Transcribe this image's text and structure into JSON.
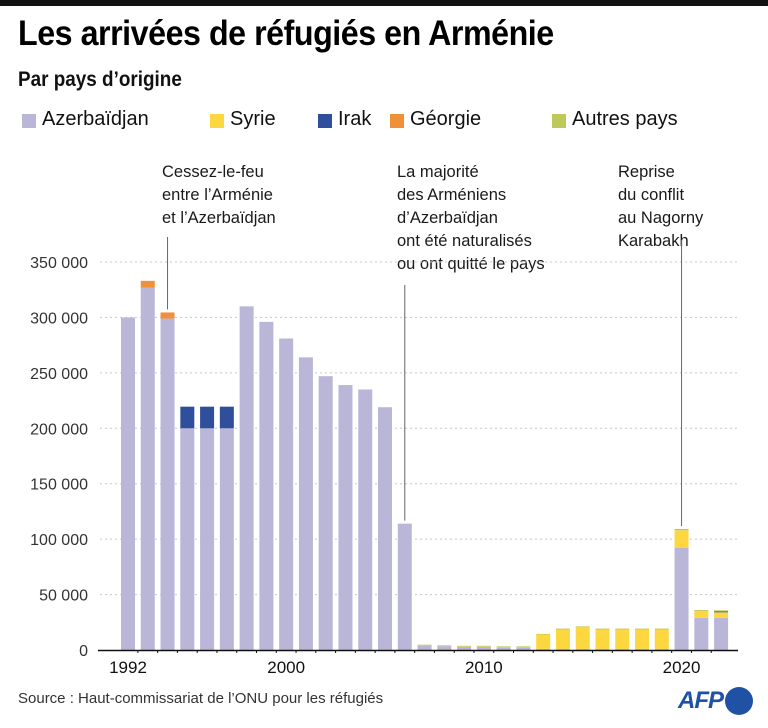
{
  "header": {
    "title": "Les arrivées de réfugiés en Arménie",
    "subtitle": "Par pays d’origine"
  },
  "legend": [
    {
      "label": "Azerbaïdjan",
      "color": "#bab6d8"
    },
    {
      "label": "Syrie",
      "color": "#fdd740"
    },
    {
      "label": "Irak",
      "color": "#2f4f9c"
    },
    {
      "label": "Géorgie",
      "color": "#f0913a"
    },
    {
      "label": "Autres pays",
      "color": "#bfc95a"
    }
  ],
  "annotations": [
    {
      "lines": [
        "Cessez-le-feu",
        "entre l’Arménie",
        "et l’Azerbaïdjan"
      ],
      "year": 1994
    },
    {
      "lines": [
        "La majorité",
        "des Arméniens",
        "d’Azerbaïdjan",
        "ont été naturalisés",
        "ou ont quitté le pays"
      ],
      "year": 2006
    },
    {
      "lines": [
        "Reprise",
        "du conflit",
        "au Nagorny",
        "Karabakh"
      ],
      "year": 2020
    }
  ],
  "footer": {
    "source": "Source : Haut-commissariat de l’ONU pour les réfugiés",
    "logo": "AFP"
  },
  "chart_data": {
    "type": "bar",
    "stacked": true,
    "title": "Les arrivées de réfugiés en Arménie",
    "subtitle": "Par pays d’origine",
    "xlabel": "",
    "ylabel": "",
    "ylim": [
      0,
      350000
    ],
    "yticks": [
      0,
      50000,
      100000,
      150000,
      200000,
      250000,
      300000,
      350000
    ],
    "ytick_labels": [
      "0",
      "50 000",
      "100 000",
      "150 000",
      "200 000",
      "250 000",
      "300 000",
      "350 000"
    ],
    "xtick_labels": [
      {
        "label": "1992",
        "year": 1992
      },
      {
        "label": "2000",
        "year": 2000
      },
      {
        "label": "2010",
        "year": 2010
      },
      {
        "label": "2020",
        "year": 2020
      }
    ],
    "grid": true,
    "legend_position": "top",
    "categories": [
      1992,
      1993,
      1994,
      1995,
      1996,
      1997,
      1998,
      1999,
      2000,
      2001,
      2002,
      2003,
      2004,
      2005,
      2006,
      2007,
      2008,
      2009,
      2010,
      2011,
      2012,
      2013,
      2014,
      2015,
      2016,
      2017,
      2018,
      2019,
      2020,
      2021,
      2022
    ],
    "series": [
      {
        "name": "Azerbaïdjan",
        "color": "#bab6d8",
        "values": [
          300000,
          327000,
          299000,
          200000,
          200000,
          200000,
          310000,
          296000,
          281000,
          264000,
          247000,
          239000,
          235000,
          219000,
          114000,
          4000,
          3500,
          3000,
          3000,
          2500,
          2500,
          1000,
          1000,
          1000,
          1000,
          1000,
          1000,
          1000,
          92000,
          29000,
          29000
        ]
      },
      {
        "name": "Syrie",
        "color": "#fdd740",
        "values": [
          0,
          0,
          0,
          0,
          0,
          0,
          0,
          0,
          0,
          0,
          0,
          0,
          0,
          0,
          0,
          500,
          500,
          500,
          500,
          500,
          500,
          13000,
          17500,
          19500,
          17500,
          17500,
          17500,
          17500,
          16000,
          6000,
          5000
        ]
      },
      {
        "name": "Irak",
        "color": "#2f4f9c",
        "values": [
          0,
          0,
          0,
          19500,
          19500,
          19500,
          0,
          0,
          0,
          0,
          0,
          0,
          0,
          0,
          0,
          0,
          0,
          0,
          0,
          0,
          0,
          0,
          0,
          0,
          0,
          0,
          0,
          0,
          0,
          0,
          800
        ]
      },
      {
        "name": "Géorgie",
        "color": "#f0913a",
        "values": [
          0,
          6000,
          5500,
          0,
          0,
          0,
          0,
          0,
          0,
          0,
          0,
          0,
          0,
          0,
          0,
          0,
          0,
          0,
          0,
          0,
          0,
          0,
          0,
          0,
          0,
          0,
          0,
          0,
          0,
          0,
          0
        ]
      },
      {
        "name": "Autres pays",
        "color": "#bfc95a",
        "values": [
          0,
          0,
          0,
          0,
          0,
          0,
          0,
          0,
          0,
          0,
          0,
          0,
          0,
          0,
          0,
          300,
          300,
          300,
          300,
          300,
          300,
          500,
          800,
          800,
          800,
          800,
          800,
          800,
          1200,
          1000,
          1000
        ]
      }
    ]
  }
}
